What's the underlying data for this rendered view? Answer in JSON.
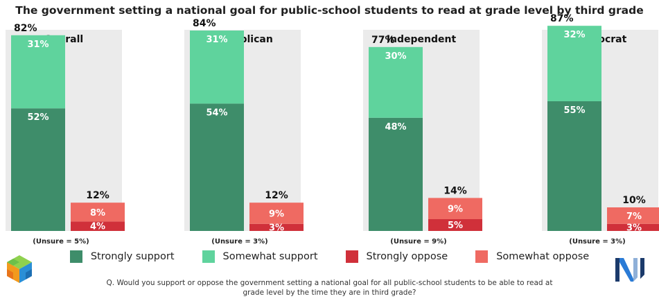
{
  "title": "The government setting a national goal for public-school students to read at grade level by third grade",
  "colors": {
    "strongly_support": "#3e8d6a",
    "somewhat_support": "#5fd39d",
    "strongly_oppose": "#d0303a",
    "somewhat_oppose": "#ef6a62",
    "panel_bg": "#ebebeb"
  },
  "legend": {
    "items": [
      {
        "label": "Strongly support",
        "color": "#3e8d6a"
      },
      {
        "label": "Somewhat support",
        "color": "#5fd39d"
      },
      {
        "label": "Strongly oppose",
        "color": "#d0303a"
      },
      {
        "label": "Somewhat oppose",
        "color": "#ef6a62"
      }
    ]
  },
  "question": "Q. Would you support or oppose the government setting a national goal for all public-school students to be able to read at grade level by the time they are in third grade?",
  "logos": {
    "left": "cube-logo-icon",
    "right": "nj-logo-icon"
  },
  "chart_data": {
    "type": "bar",
    "stacked": true,
    "ylim": [
      0,
      100
    ],
    "panels": [
      {
        "title": "Overall",
        "support": {
          "total": 82,
          "total_label": "82%",
          "strongly": 52,
          "strongly_label": "52%",
          "somewhat": 31,
          "somewhat_label": "31%"
        },
        "oppose": {
          "total": 12,
          "total_label": "12%",
          "strongly": 4,
          "strongly_label": "4%",
          "somewhat": 8,
          "somewhat_label": "8%"
        },
        "unsure": "(Unsure = 5%)"
      },
      {
        "title": "Republican",
        "support": {
          "total": 84,
          "total_label": "84%",
          "strongly": 54,
          "strongly_label": "54%",
          "somewhat": 31,
          "somewhat_label": "31%"
        },
        "oppose": {
          "total": 12,
          "total_label": "12%",
          "strongly": 3,
          "strongly_label": "3%",
          "somewhat": 9,
          "somewhat_label": "9%"
        },
        "unsure": "(Unsure = 3%)"
      },
      {
        "title": "Independent",
        "support": {
          "total": 77,
          "total_label": "77%",
          "strongly": 48,
          "strongly_label": "48%",
          "somewhat": 30,
          "somewhat_label": "30%"
        },
        "oppose": {
          "total": 14,
          "total_label": "14%",
          "strongly": 5,
          "strongly_label": "5%",
          "somewhat": 9,
          "somewhat_label": "9%"
        },
        "unsure": "(Unsure = 9%)"
      },
      {
        "title": "Democrat",
        "support": {
          "total": 87,
          "total_label": "87%",
          "strongly": 55,
          "strongly_label": "55%",
          "somewhat": 32,
          "somewhat_label": "32%"
        },
        "oppose": {
          "total": 10,
          "total_label": "10%",
          "strongly": 3,
          "strongly_label": "3%",
          "somewhat": 7,
          "somewhat_label": "7%"
        },
        "unsure": "(Unsure = 3%)"
      }
    ]
  }
}
